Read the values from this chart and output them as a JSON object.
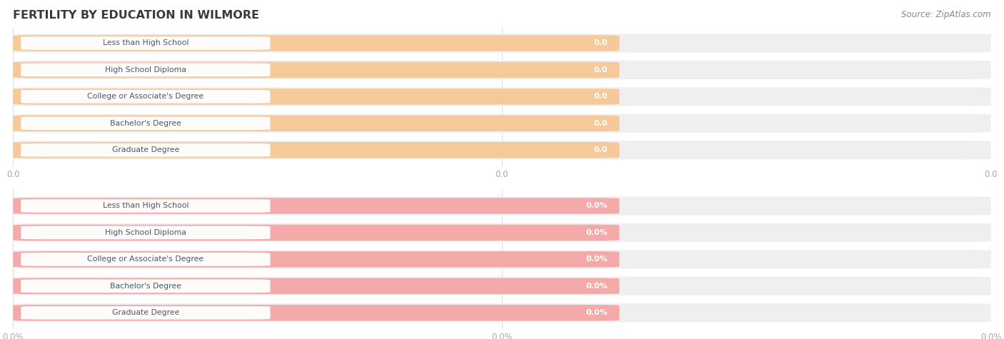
{
  "title": "FERTILITY BY EDUCATION IN WILMORE",
  "source": "Source: ZipAtlas.com",
  "categories": [
    "Less than High School",
    "High School Diploma",
    "College or Associate's Degree",
    "Bachelor's Degree",
    "Graduate Degree"
  ],
  "values_top": [
    0.0,
    0.0,
    0.0,
    0.0,
    0.0
  ],
  "values_bottom": [
    0.0,
    0.0,
    0.0,
    0.0,
    0.0
  ],
  "bar_color_top": "#f5c99a",
  "bar_color_bottom": "#f5aaaa",
  "bg_bar_color": "#efefef",
  "text_color_label": "#4a5568",
  "title_color": "#3a3a3a",
  "source_color": "#888888",
  "background_color": "#ffffff",
  "tick_color": "#aaaaaa",
  "grid_color": "#dddddd",
  "value_text_color": "#e8956e",
  "value_text_color_bottom": "#d07070"
}
